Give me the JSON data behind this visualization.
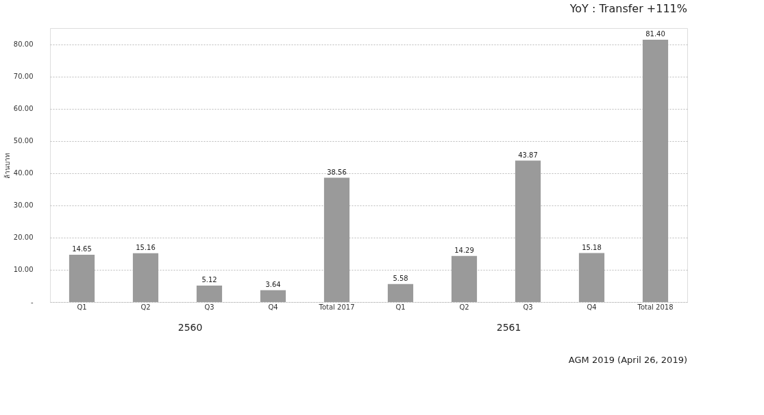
{
  "chart_data": {
    "type": "bar",
    "title": "YoY : Transfer +111%",
    "ylabel": "ล้านบาท",
    "categories": [
      "Q1",
      "Q2",
      "Q3",
      "Q4",
      "Total 2017",
      "Q1",
      "Q2",
      "Q3",
      "Q4",
      "Total 2018"
    ],
    "values": [
      14.65,
      15.16,
      5.12,
      3.64,
      38.56,
      5.58,
      14.29,
      43.87,
      15.18,
      81.4
    ],
    "value_labels": [
      "14.65",
      "15.16",
      "5.12",
      "3.64",
      "38.56",
      "5.58",
      "14.29",
      "43.87",
      "15.18",
      "81.40"
    ],
    "color": "#9a9a9a",
    "ylim": [
      0,
      85
    ],
    "yticks": [
      {
        "value": 0,
        "label": "-"
      },
      {
        "value": 10,
        "label": "10.00"
      },
      {
        "value": 20,
        "label": "20.00"
      },
      {
        "value": 30,
        "label": "30.00"
      },
      {
        "value": 40,
        "label": "40.00"
      },
      {
        "value": 50,
        "label": "50.00"
      },
      {
        "value": 60,
        "label": "60.00"
      },
      {
        "value": 70,
        "label": "70.00"
      },
      {
        "value": 80,
        "label": "80.00"
      }
    ],
    "grid": "y",
    "annotations": [
      "2560",
      "2561",
      "AGM 2019 (April 26, 2019)"
    ]
  }
}
